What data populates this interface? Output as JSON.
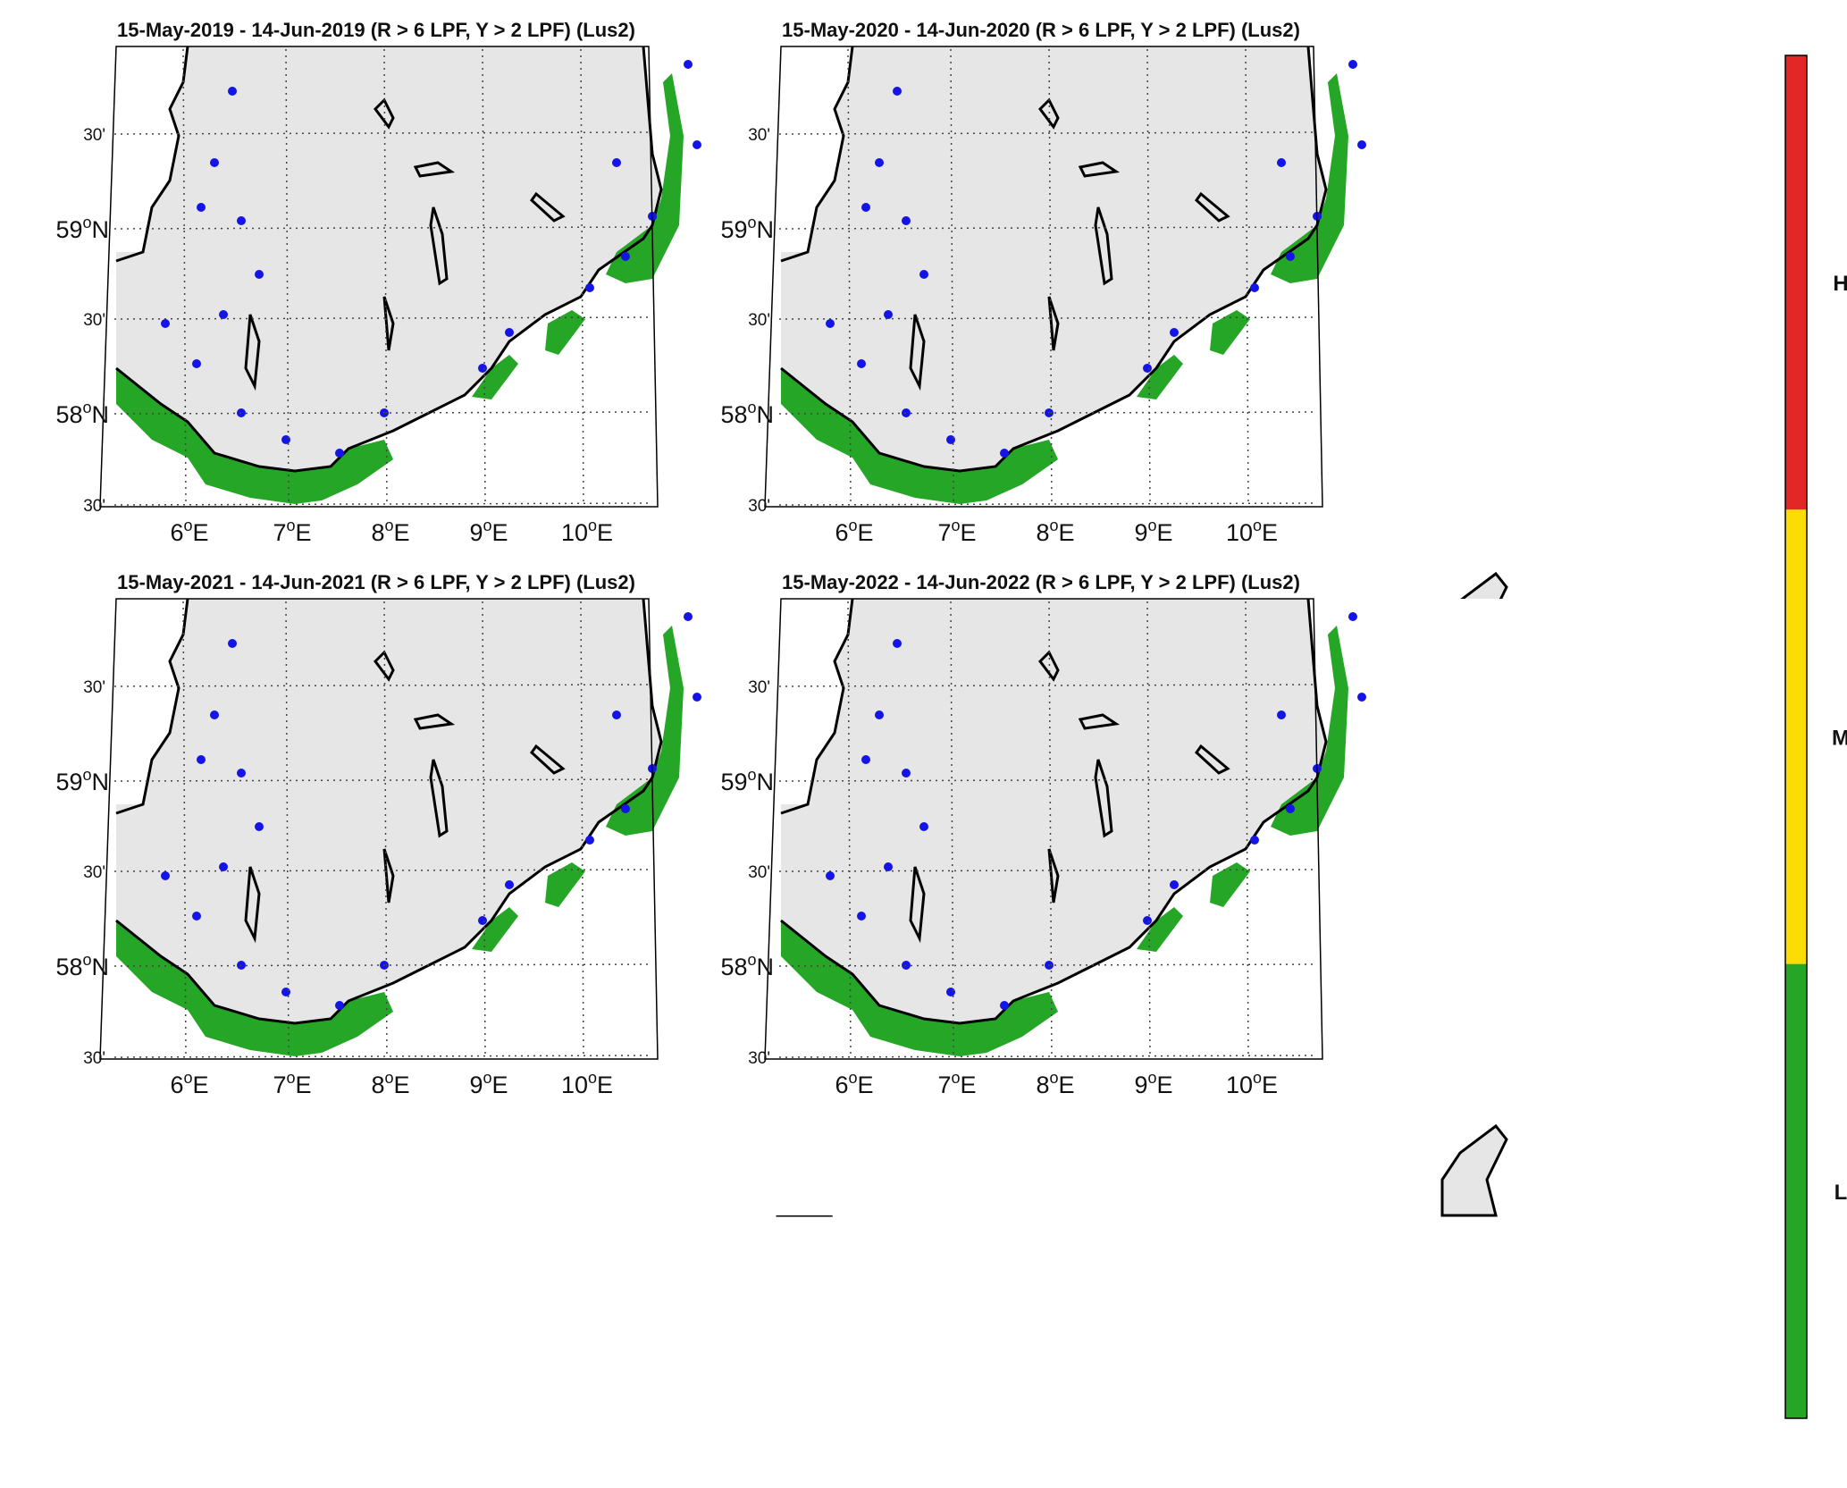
{
  "figure": {
    "panels": [
      {
        "title": "15-May-2019  - 14-Jun-2019  (R > 6 LPF, Y > 2 LPF) (Lus2)"
      },
      {
        "title": "15-May-2020  - 14-Jun-2020  (R > 6 LPF, Y > 2 LPF) (Lus2)"
      },
      {
        "title": "15-May-2021  - 14-Jun-2021  (R > 6 LPF, Y > 2 LPF) (Lus2)"
      },
      {
        "title": "15-May-2022  - 14-Jun-2022  (R > 6 LPF, Y > 2 LPF) (Lus2)"
      }
    ],
    "lon_ticks": [
      {
        "deg": "6",
        "sym": "o",
        "hem": "E"
      },
      {
        "deg": "7",
        "sym": "o",
        "hem": "E"
      },
      {
        "deg": "8",
        "sym": "o",
        "hem": "E"
      },
      {
        "deg": "9",
        "sym": "o",
        "hem": "E"
      },
      {
        "deg": "10",
        "sym": "o",
        "hem": "E"
      }
    ],
    "lat_ticks": [
      {
        "text": "30'",
        "big": false
      },
      {
        "deg": "59",
        "sym": "o",
        "hem": "N",
        "big": true
      },
      {
        "text": "30'",
        "big": false
      },
      {
        "deg": "58",
        "sym": "o",
        "hem": "N",
        "big": true
      },
      {
        "text": "30'",
        "big": false
      }
    ],
    "colorbar": [
      {
        "label": "H",
        "color": "#e32726"
      },
      {
        "label": "M",
        "color": "#fbdc04"
      },
      {
        "label": "L",
        "color": "#26a626"
      }
    ],
    "colors": {
      "land": "#e6e6e6",
      "coast": "#000000",
      "green_area": "#26a626",
      "station": "#1414e6",
      "grid": "#444444"
    }
  }
}
